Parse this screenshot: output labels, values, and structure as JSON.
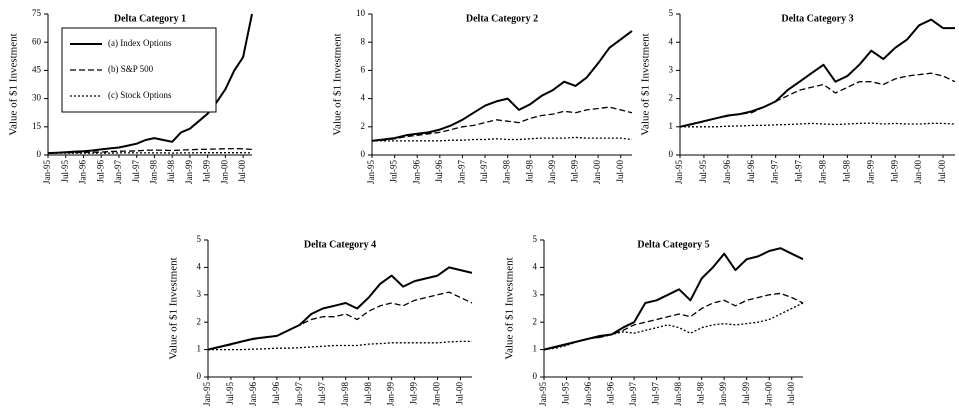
{
  "chart_data": [
    {
      "type": "line",
      "title": "Delta Category 1",
      "ylabel": "Value of $1 Investment",
      "categories": [
        "Jan-95",
        null,
        "Jul-95",
        null,
        "Jan-96",
        null,
        "Jul-96",
        null,
        "Jan-97",
        null,
        "Jul-97",
        null,
        "Jan-98",
        null,
        "Jul-98",
        null,
        "Jan-99",
        null,
        "Jul-99",
        null,
        "Jan-00",
        null,
        "Jul-00",
        null
      ],
      "ylim": [
        0,
        75
      ],
      "yticks": [
        0,
        15,
        30,
        45,
        60,
        75
      ],
      "legend": "upper left",
      "series": [
        {
          "name": "(a) Index Options",
          "color": "#000000",
          "dash": "solid",
          "values": [
            1,
            1.2,
            1.5,
            1.8,
            2,
            2.4,
            3,
            3.5,
            4,
            5,
            6,
            8,
            9,
            8,
            7,
            12,
            14,
            18,
            22,
            28,
            35,
            45,
            52,
            75
          ]
        },
        {
          "name": "(b) S&P 500",
          "color": "#000000",
          "dash": "dashed",
          "values": [
            1,
            1.1,
            1.2,
            1.3,
            1.4,
            1.5,
            1.6,
            1.8,
            2,
            2.1,
            2.2,
            2.5,
            2.6,
            2.5,
            2.4,
            2.6,
            2.8,
            3,
            3.1,
            3.2,
            3.3,
            3.4,
            3.3,
            3
          ]
        },
        {
          "name": "(c) Stock Options",
          "color": "#000000",
          "dash": "dotted",
          "values": [
            1,
            1,
            1,
            1,
            1,
            1,
            1,
            1,
            1.1,
            1.1,
            1.1,
            1.1,
            1.1,
            1.1,
            1,
            1.1,
            1.1,
            1.2,
            1.2,
            1.2,
            1.2,
            1.2,
            1.2,
            1.1
          ]
        }
      ]
    },
    {
      "type": "line",
      "title": "Delta Category 2",
      "ylabel": "Value of $1 Investment",
      "categories": [
        "Jan-95",
        null,
        "Jul-95",
        null,
        "Jan-96",
        null,
        "Jul-96",
        null,
        "Jan-97",
        null,
        "Jul-97",
        null,
        "Jan-98",
        null,
        "Jul-98",
        null,
        "Jan-99",
        null,
        "Jul-99",
        null,
        "Jan-00",
        null,
        "Jul-00",
        null
      ],
      "ylim": [
        0,
        10
      ],
      "yticks": [
        0,
        2,
        4,
        6,
        8,
        10
      ],
      "series": [
        {
          "color": "#000000",
          "dash": "solid",
          "values": [
            1,
            1.1,
            1.2,
            1.4,
            1.5,
            1.6,
            1.8,
            2.1,
            2.5,
            3,
            3.5,
            3.8,
            4,
            3.2,
            3.6,
            4.2,
            4.6,
            5.2,
            4.9,
            5.5,
            6.5,
            7.6,
            8.2,
            8.8
          ]
        },
        {
          "color": "#000000",
          "dash": "dashed",
          "values": [
            1,
            1.05,
            1.15,
            1.3,
            1.4,
            1.5,
            1.6,
            1.8,
            2,
            2.1,
            2.3,
            2.5,
            2.4,
            2.3,
            2.6,
            2.8,
            2.9,
            3.1,
            3,
            3.2,
            3.3,
            3.4,
            3.2,
            3
          ]
        },
        {
          "color": "#000000",
          "dash": "dotted",
          "values": [
            1,
            1,
            1,
            1,
            1,
            1,
            1,
            1.05,
            1.05,
            1.1,
            1.1,
            1.15,
            1.1,
            1.1,
            1.15,
            1.2,
            1.2,
            1.2,
            1.25,
            1.2,
            1.2,
            1.2,
            1.2,
            1.1
          ]
        }
      ]
    },
    {
      "type": "line",
      "title": "Delta Category 3",
      "ylabel": "Value of $1 Investment",
      "categories": [
        "Jan-95",
        null,
        "Jul-95",
        null,
        "Jan-96",
        null,
        "Jul-96",
        null,
        "Jan-97",
        null,
        "Jul-97",
        null,
        "Jan-98",
        null,
        "Jul-98",
        null,
        "Jan-99",
        null,
        "Jul-99",
        null,
        "Jan-00",
        null,
        "Jul-00",
        null
      ],
      "ylim": [
        0,
        5
      ],
      "yticks": [
        0,
        1,
        2,
        3,
        4,
        5
      ],
      "series": [
        {
          "color": "#000000",
          "dash": "solid",
          "values": [
            1,
            1.1,
            1.2,
            1.3,
            1.4,
            1.45,
            1.55,
            1.7,
            1.9,
            2.3,
            2.6,
            2.9,
            3.2,
            2.6,
            2.8,
            3.2,
            3.7,
            3.4,
            3.8,
            4.1,
            4.6,
            4.8,
            4.5,
            4.5
          ]
        },
        {
          "color": "#000000",
          "dash": "dashed",
          "values": [
            1,
            1.08,
            1.18,
            1.3,
            1.38,
            1.45,
            1.5,
            1.7,
            1.9,
            2.1,
            2.3,
            2.4,
            2.5,
            2.2,
            2.4,
            2.6,
            2.6,
            2.5,
            2.7,
            2.8,
            2.85,
            2.9,
            2.8,
            2.6
          ]
        },
        {
          "color": "#000000",
          "dash": "dotted",
          "values": [
            1,
            1,
            1,
            1,
            1.02,
            1.03,
            1.05,
            1.05,
            1.07,
            1.08,
            1.1,
            1.12,
            1.1,
            1.08,
            1.1,
            1.12,
            1.13,
            1.1,
            1.12,
            1.1,
            1.1,
            1.12,
            1.12,
            1.1
          ]
        }
      ]
    },
    {
      "type": "line",
      "title": "Delta Category 4",
      "ylabel": "Value of $1 Investment",
      "categories": [
        "Jan-95",
        null,
        "Jul-95",
        null,
        "Jan-96",
        null,
        "Jul-96",
        null,
        "Jan-97",
        null,
        "Jul-97",
        null,
        "Jan-98",
        null,
        "Jul-98",
        null,
        "Jan-99",
        null,
        "Jul-99",
        null,
        "Jan-00",
        null,
        "Jul-00",
        null
      ],
      "ylim": [
        0,
        5
      ],
      "yticks": [
        0,
        1,
        2,
        3,
        4,
        5
      ],
      "series": [
        {
          "color": "#000000",
          "dash": "solid",
          "values": [
            1,
            1.1,
            1.2,
            1.3,
            1.4,
            1.45,
            1.5,
            1.7,
            1.9,
            2.3,
            2.5,
            2.6,
            2.7,
            2.5,
            2.9,
            3.4,
            3.7,
            3.3,
            3.5,
            3.6,
            3.7,
            4,
            3.9,
            3.8
          ]
        },
        {
          "color": "#000000",
          "dash": "dashed",
          "values": [
            1,
            1.08,
            1.18,
            1.3,
            1.38,
            1.45,
            1.5,
            1.7,
            1.9,
            2.1,
            2.2,
            2.2,
            2.3,
            2.1,
            2.4,
            2.6,
            2.7,
            2.6,
            2.8,
            2.9,
            3,
            3.1,
            2.9,
            2.7
          ]
        },
        {
          "color": "#000000",
          "dash": "dotted",
          "values": [
            1,
            1,
            1,
            1,
            1.02,
            1.03,
            1.05,
            1.05,
            1.07,
            1.1,
            1.12,
            1.15,
            1.15,
            1.15,
            1.2,
            1.22,
            1.25,
            1.25,
            1.25,
            1.25,
            1.25,
            1.28,
            1.3,
            1.3
          ]
        }
      ]
    },
    {
      "type": "line",
      "title": "Delta Category 5",
      "ylabel": "Value of $1 Investment",
      "categories": [
        "Jan-95",
        null,
        "Jul-95",
        null,
        "Jan-96",
        null,
        "Jul-96",
        null,
        "Jan-97",
        null,
        "Jul-97",
        null,
        "Jan-98",
        null,
        "Jul-98",
        null,
        "Jan-99",
        null,
        "Jul-99",
        null,
        "Jan-00",
        null,
        "Jul-00",
        null
      ],
      "ylim": [
        0,
        5
      ],
      "yticks": [
        0,
        1,
        2,
        3,
        4,
        5
      ],
      "series": [
        {
          "color": "#000000",
          "dash": "solid",
          "values": [
            1,
            1.1,
            1.2,
            1.3,
            1.4,
            1.5,
            1.55,
            1.8,
            2,
            2.7,
            2.8,
            3,
            3.2,
            2.8,
            3.6,
            4,
            4.5,
            3.9,
            4.3,
            4.4,
            4.6,
            4.7,
            4.5,
            4.3
          ]
        },
        {
          "color": "#000000",
          "dash": "dashed",
          "values": [
            1,
            1.08,
            1.18,
            1.3,
            1.4,
            1.45,
            1.55,
            1.7,
            1.9,
            2,
            2.1,
            2.2,
            2.3,
            2.2,
            2.5,
            2.7,
            2.8,
            2.6,
            2.8,
            2.9,
            3,
            3.05,
            2.9,
            2.7
          ]
        },
        {
          "color": "#000000",
          "dash": "dotted",
          "values": [
            1,
            1.05,
            1.15,
            1.3,
            1.4,
            1.45,
            1.55,
            1.65,
            1.6,
            1.7,
            1.8,
            1.9,
            1.8,
            1.6,
            1.8,
            1.9,
            1.95,
            1.9,
            1.95,
            2,
            2.1,
            2.3,
            2.5,
            2.7
          ]
        }
      ]
    }
  ]
}
